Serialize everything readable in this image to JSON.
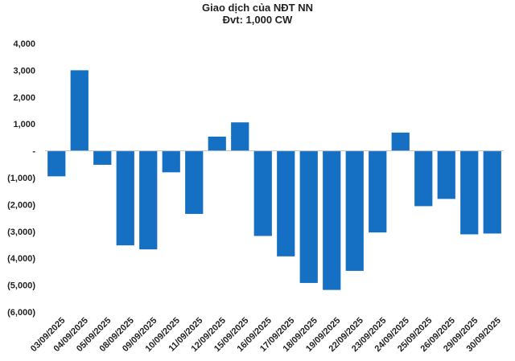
{
  "chart_data": {
    "type": "bar",
    "title": "Giao dịch của NĐT NN",
    "subtitle": "Đvt: 1,000 CW",
    "xlabel": "",
    "ylabel": "",
    "ylim": [
      -6000,
      4000
    ],
    "yticks": [
      {
        "value": 4000,
        "label": "4,000"
      },
      {
        "value": 3000,
        "label": "3,000"
      },
      {
        "value": 2000,
        "label": "2,000"
      },
      {
        "value": 1000,
        "label": "1,000"
      },
      {
        "value": 0,
        "label": "-"
      },
      {
        "value": -1000,
        "label": "(1,000)"
      },
      {
        "value": -2000,
        "label": "(2,000)"
      },
      {
        "value": -3000,
        "label": "(3,000)"
      },
      {
        "value": -4000,
        "label": "(4,000)"
      },
      {
        "value": -5000,
        "label": "(5,000)"
      },
      {
        "value": -6000,
        "label": "(6,000)"
      }
    ],
    "grid": false,
    "bar_color": "#1570C4",
    "categories": [
      "03/09/2025",
      "04/09/2025",
      "05/09/2025",
      "08/09/2025",
      "09/09/2025",
      "10/09/2025",
      "11/09/2025",
      "12/09/2025",
      "15/09/2025",
      "16/09/2025",
      "17/09/2025",
      "18/09/2025",
      "19/09/2025",
      "22/09/2025",
      "23/09/2025",
      "24/09/2025",
      "25/09/2025",
      "26/09/2025",
      "29/09/2025",
      "30/09/2025"
    ],
    "values": [
      -950,
      3000,
      -520,
      -3520,
      -3670,
      -800,
      -2350,
      530,
      1060,
      -3170,
      -3930,
      -4920,
      -5180,
      -4470,
      -3040,
      680,
      -2060,
      -1790,
      -3110,
      -3080
    ]
  }
}
